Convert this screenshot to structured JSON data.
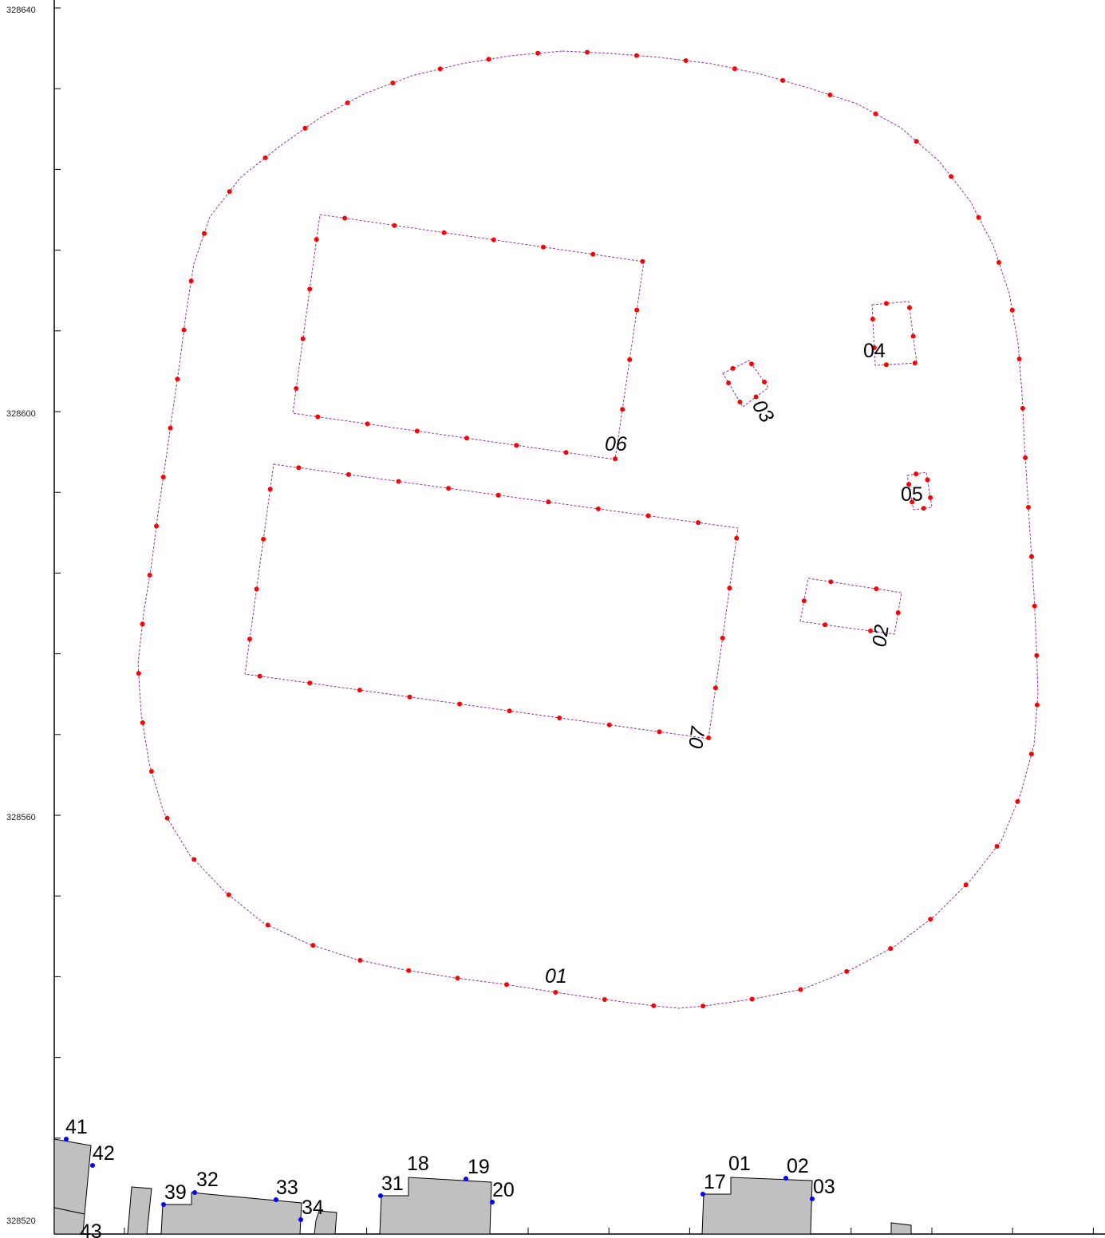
{
  "y_axis": {
    "labels": [
      "328640",
      "328600",
      "328560",
      "328520"
    ]
  },
  "colors": {
    "outline": "#9b2fa6",
    "vertex": "#ff0000",
    "building_fill": "#c0c0c0",
    "building_stroke": "#000000",
    "building_vertex": "#0000ff",
    "axis": "#000000"
  },
  "plot_labels": [
    {
      "id": "01",
      "text": "01"
    },
    {
      "id": "02",
      "text": "02"
    },
    {
      "id": "03",
      "text": "03"
    },
    {
      "id": "04",
      "text": "04"
    },
    {
      "id": "05",
      "text": "05"
    },
    {
      "id": "06",
      "text": "06"
    },
    {
      "id": "07",
      "text": "07"
    }
  ],
  "building_labels": [
    "41",
    "42",
    "43",
    "39",
    "32",
    "33",
    "34",
    "31",
    "18",
    "19",
    "20",
    "17",
    "01",
    "02",
    "03"
  ]
}
